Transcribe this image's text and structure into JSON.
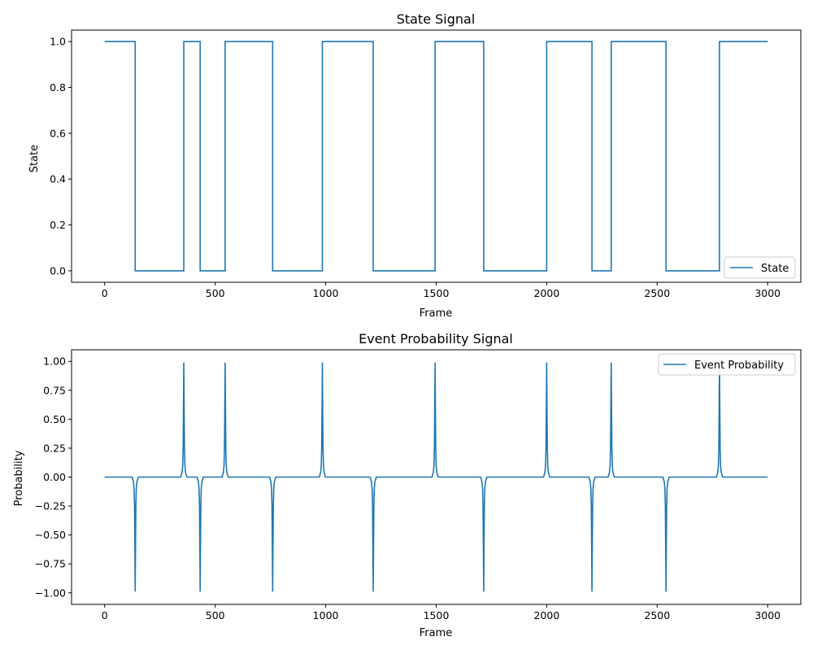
{
  "line_color": "#1f77b4",
  "chart_data": [
    {
      "type": "line",
      "title": "State Signal",
      "xlabel": "Frame",
      "ylabel": "State",
      "xlim": [
        -150,
        3150
      ],
      "ylim": [
        -0.05,
        1.05
      ],
      "x_ticks": [
        0,
        500,
        1000,
        1500,
        2000,
        2500,
        3000
      ],
      "y_ticks": [
        0.0,
        0.2,
        0.4,
        0.6,
        0.8,
        1.0
      ],
      "y_tick_labels": [
        "0.0",
        "0.2",
        "0.4",
        "0.6",
        "0.8",
        "1.0"
      ],
      "grid": false,
      "legend": "lower-right",
      "series": [
        {
          "name": "State",
          "x": [
            0,
            138,
            138,
            358,
            358,
            432,
            432,
            545,
            545,
            760,
            760,
            985,
            985,
            1215,
            1215,
            1495,
            1495,
            1715,
            1715,
            2000,
            2000,
            2205,
            2205,
            2292,
            2292,
            2540,
            2540,
            2782,
            2782,
            3000
          ],
          "y": [
            1,
            1,
            0,
            0,
            1,
            1,
            0,
            0,
            1,
            1,
            0,
            0,
            1,
            1,
            0,
            0,
            1,
            1,
            0,
            0,
            1,
            1,
            0,
            0,
            1,
            1,
            0,
            0,
            1,
            1
          ]
        }
      ]
    },
    {
      "type": "line",
      "title": "Event Probability Signal",
      "xlabel": "Frame",
      "ylabel": "Probability",
      "xlim": [
        -150,
        3150
      ],
      "ylim": [
        -1.1,
        1.1
      ],
      "x_ticks": [
        0,
        500,
        1000,
        1500,
        2000,
        2500,
        3000
      ],
      "y_ticks": [
        -1.0,
        -0.75,
        -0.5,
        -0.25,
        0.0,
        0.25,
        0.5,
        0.75,
        1.0
      ],
      "y_tick_labels": [
        "−1.00",
        "−0.75",
        "−0.50",
        "−0.25",
        "0.00",
        "0.25",
        "0.50",
        "0.75",
        "1.00"
      ],
      "grid": false,
      "legend": "upper-right",
      "series": [
        {
          "name": "Event Probability",
          "x_range": [
            0,
            3000
          ],
          "baseline": 0,
          "peak_half_width": 3,
          "events": [
            {
              "frame": 138,
              "value": -0.99
            },
            {
              "frame": 358,
              "value": 0.99
            },
            {
              "frame": 432,
              "value": -0.99
            },
            {
              "frame": 545,
              "value": 0.99
            },
            {
              "frame": 760,
              "value": -0.99
            },
            {
              "frame": 985,
              "value": 0.99
            },
            {
              "frame": 1215,
              "value": -0.99
            },
            {
              "frame": 1495,
              "value": 0.99
            },
            {
              "frame": 1715,
              "value": -0.99
            },
            {
              "frame": 2000,
              "value": 0.99
            },
            {
              "frame": 2205,
              "value": -0.99
            },
            {
              "frame": 2292,
              "value": 0.99
            },
            {
              "frame": 2540,
              "value": -0.99
            },
            {
              "frame": 2782,
              "value": 0.99
            }
          ]
        }
      ]
    }
  ]
}
